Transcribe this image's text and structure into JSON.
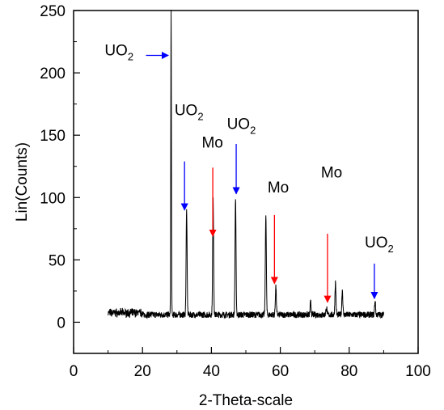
{
  "chart_data": {
    "type": "line",
    "xlabel": "2-Theta-scale",
    "ylabel": "Lin(Counts)",
    "xlim": [
      0,
      100
    ],
    "ylim": [
      -25,
      250
    ],
    "x_ticks": [
      0,
      20,
      40,
      60,
      80,
      100
    ],
    "y_ticks": [
      0,
      50,
      100,
      150,
      200,
      250
    ],
    "grid": false,
    "series": [
      {
        "color": "#000000",
        "baseline": 6,
        "x_range": [
          10,
          90
        ],
        "peaks": [
          {
            "x": 28.3,
            "y": 250
          },
          {
            "x": 32.8,
            "y": 90
          },
          {
            "x": 40.5,
            "y": 98
          },
          {
            "x": 47.0,
            "y": 99
          },
          {
            "x": 55.8,
            "y": 87
          },
          {
            "x": 58.7,
            "y": 29
          },
          {
            "x": 68.8,
            "y": 16
          },
          {
            "x": 73.4,
            "y": 12
          },
          {
            "x": 76.0,
            "y": 32
          },
          {
            "x": 78.0,
            "y": 26
          },
          {
            "x": 87.5,
            "y": 17
          }
        ]
      }
    ],
    "annotations": [
      {
        "text": "UO",
        "sub": "2",
        "arrow_color": "#0000ff",
        "label_pos": [
          9,
          214
        ],
        "arrow_from": [
          21,
          214
        ],
        "arrow_to": [
          27.5,
          214
        ]
      },
      {
        "text": "UO",
        "sub": "2",
        "arrow_color": "#0000ff",
        "label_pos": [
          29.3,
          166
        ],
        "arrow_from": [
          32.2,
          129
        ],
        "arrow_to": [
          32.2,
          90
        ]
      },
      {
        "text": "Mo",
        "sub": "",
        "arrow_color": "#ff0000",
        "label_pos": [
          37.2,
          140
        ],
        "arrow_from": [
          40.4,
          124
        ],
        "arrow_to": [
          40.4,
          69
        ]
      },
      {
        "text": "UO",
        "sub": "2",
        "arrow_color": "#0000ff",
        "label_pos": [
          44.5,
          155
        ],
        "arrow_from": [
          47.2,
          143
        ],
        "arrow_to": [
          47.2,
          103
        ]
      },
      {
        "text": "Mo",
        "sub": "",
        "arrow_color": "#ff0000",
        "label_pos": [
          56.3,
          104
        ],
        "arrow_from": [
          58.3,
          86
        ],
        "arrow_to": [
          58.3,
          31
        ]
      },
      {
        "text": "Mo",
        "sub": "",
        "arrow_color": "#ff0000",
        "label_pos": [
          71.8,
          116
        ],
        "arrow_from": [
          73.7,
          71
        ],
        "arrow_to": [
          73.7,
          16
        ]
      },
      {
        "text": "UO",
        "sub": "2",
        "arrow_color": "#0000ff",
        "label_pos": [
          84.5,
          60
        ],
        "arrow_from": [
          87.3,
          47
        ],
        "arrow_to": [
          87.3,
          19
        ]
      }
    ]
  }
}
